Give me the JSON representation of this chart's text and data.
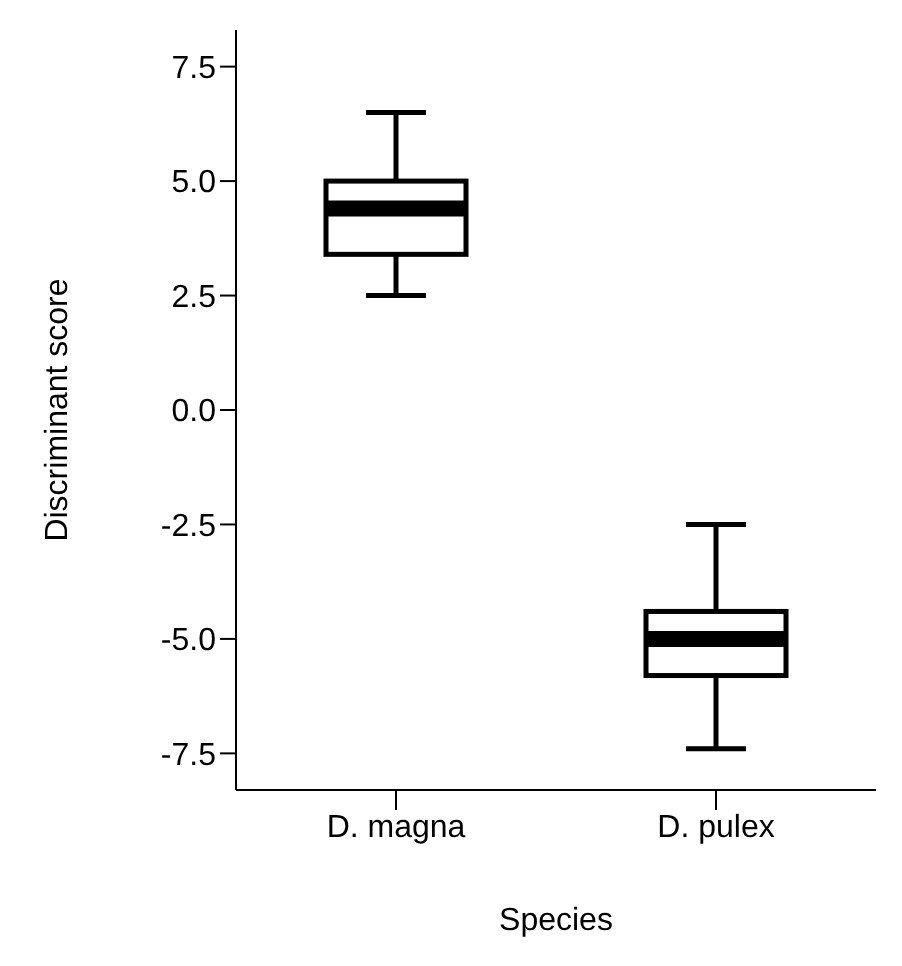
{
  "chart_data": {
    "type": "box",
    "xlabel": "Species",
    "ylabel": "Discriminant score",
    "categories": [
      "D. magna",
      "D. pulex"
    ],
    "boxes": [
      {
        "low": 2.5,
        "q1": 3.4,
        "median": 4.4,
        "q3": 5.0,
        "high": 6.5
      },
      {
        "low": -7.4,
        "q1": -5.8,
        "median": -5.0,
        "q3": -4.4,
        "high": -2.5
      }
    ],
    "ylim": [
      -8.3,
      8.3
    ],
    "yticks": [
      {
        "value": 7.5,
        "label": "7.5"
      },
      {
        "value": 5,
        "label": "5.0"
      },
      {
        "value": 2.5,
        "label": "2.5"
      },
      {
        "value": 0,
        "label": "0.0"
      },
      {
        "value": -2.5,
        "label": "-2.5"
      },
      {
        "value": -5,
        "label": "-5.0"
      },
      {
        "value": -7.5,
        "label": "-7.5"
      }
    ],
    "grid": false
  }
}
